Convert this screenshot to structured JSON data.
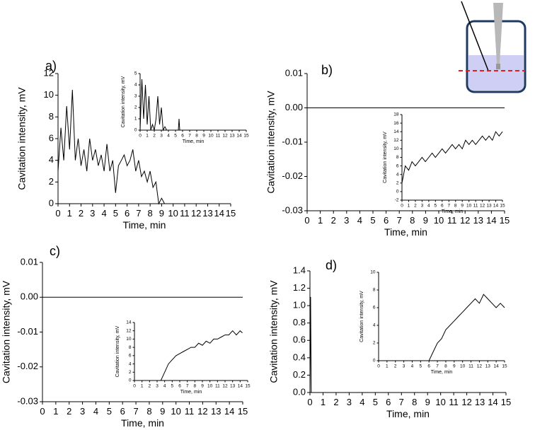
{
  "chart_data": [
    {
      "type": "line",
      "panel_label": "a)",
      "xlabel": "Time, min",
      "ylabel": "Cavitation intensity, mV",
      "color": "#000000",
      "x": [
        0,
        0.25,
        0.5,
        0.75,
        1,
        1.25,
        1.5,
        1.75,
        2,
        2.25,
        2.5,
        2.75,
        3,
        3.25,
        3.5,
        3.75,
        4,
        4.25,
        4.5,
        4.75,
        5,
        5.25,
        5.5,
        5.75,
        6,
        6.25,
        6.5,
        6.75,
        7,
        7.25,
        7.5,
        7.75,
        8,
        8.25,
        8.5,
        8.75,
        9,
        9.25,
        9.5,
        9.75,
        10,
        15
      ],
      "values": [
        3,
        7,
        4,
        9,
        5,
        10.5,
        4,
        6,
        3.5,
        5,
        3,
        6,
        4,
        5,
        3.5,
        4.5,
        3,
        5.5,
        3,
        4,
        1,
        3.5,
        4,
        4.5,
        3.5,
        4,
        5,
        3,
        4,
        2.5,
        3,
        2,
        3,
        1.5,
        2,
        0,
        0.5,
        0,
        0,
        0,
        0,
        0
      ],
      "xlim": [
        0,
        15
      ],
      "ylim": [
        0,
        12
      ],
      "xticks": [
        0,
        1,
        2,
        3,
        4,
        5,
        6,
        7,
        8,
        9,
        10,
        11,
        12,
        13,
        14,
        15
      ],
      "yticks": [
        0,
        2,
        4,
        6,
        8,
        10,
        12
      ]
    },
    {
      "type": "line",
      "xlabel": "Time, min",
      "ylabel": "Cavitation intensity, mV",
      "color": "#000000",
      "x": [
        0,
        0.25,
        0.5,
        0.75,
        1,
        1.25,
        1.5,
        1.75,
        2,
        2.25,
        2.5,
        2.75,
        3,
        3.25,
        3.5,
        3.75,
        4,
        5.4,
        5.5,
        5.6,
        15
      ],
      "values": [
        0,
        4.5,
        1,
        4,
        0.5,
        3,
        0,
        0.5,
        0,
        1,
        3,
        0.5,
        2,
        0,
        0.3,
        0,
        0,
        0,
        1,
        0,
        0
      ],
      "xlim": [
        0,
        15
      ],
      "ylim": [
        0,
        5
      ],
      "xticks": [
        0,
        1,
        2,
        3,
        4,
        5,
        6,
        7,
        8,
        9,
        10,
        11,
        12,
        13,
        14,
        15
      ],
      "yticks": [
        0,
        1,
        2,
        3,
        4,
        5
      ]
    },
    {
      "type": "line",
      "panel_label": "b)",
      "xlabel": "Time, min",
      "ylabel": "Cavitation intensity, mV",
      "color": "#000000",
      "x": [
        0,
        15
      ],
      "values": [
        0,
        0
      ],
      "xlim": [
        0,
        15
      ],
      "ylim": [
        -0.03,
        0.01
      ],
      "xticks": [
        0,
        1,
        2,
        3,
        4,
        5,
        6,
        7,
        8,
        9,
        10,
        11,
        12,
        13,
        14,
        15
      ],
      "yticks": [
        -0.03,
        -0.02,
        -0.01,
        {
          "value": 0,
          "label": "0.00"
        },
        0.01
      ]
    },
    {
      "type": "line",
      "xlabel": "Time, min",
      "ylabel": "Cavitation intensity, mV",
      "color": "#000000",
      "x": [
        0,
        0.5,
        1,
        1.5,
        2,
        2.5,
        3,
        3.5,
        4,
        4.5,
        5,
        5.5,
        6,
        6.5,
        7,
        7.5,
        8,
        8.5,
        9,
        9.5,
        10,
        10.5,
        11,
        11.5,
        12,
        12.5,
        13,
        13.5,
        14,
        14.5,
        15
      ],
      "values": [
        2,
        6,
        5,
        7,
        6,
        7,
        8,
        7,
        8,
        9,
        8,
        9,
        10,
        9,
        10,
        11,
        10,
        11,
        10,
        12,
        11,
        12,
        11,
        12,
        13,
        12,
        13,
        12,
        14,
        13,
        14
      ],
      "xlim": [
        0,
        15
      ],
      "ylim": [
        -2,
        18
      ],
      "xticks": [
        0,
        1,
        2,
        3,
        4,
        5,
        6,
        7,
        8,
        9,
        10,
        11,
        12,
        13,
        14,
        15
      ],
      "yticks": [
        -2,
        0,
        2,
        4,
        6,
        8,
        10,
        12,
        14,
        16,
        18
      ]
    },
    {
      "type": "line",
      "panel_label": "c)",
      "xlabel": "Time, min",
      "ylabel": "Cavitation intensity, mV",
      "color": "#000000",
      "x": [
        0,
        15
      ],
      "values": [
        0,
        0
      ],
      "xlim": [
        0,
        15
      ],
      "ylim": [
        -0.03,
        0.01
      ],
      "xticks": [
        0,
        1,
        2,
        3,
        4,
        5,
        6,
        7,
        8,
        9,
        10,
        11,
        12,
        13,
        14,
        15
      ],
      "yticks": [
        -0.03,
        -0.02,
        -0.01,
        {
          "value": 0,
          "label": "0.00"
        },
        0.01
      ]
    },
    {
      "type": "line",
      "xlabel": "Time, min",
      "ylabel": "Cavitation intensity, mV",
      "color": "#000000",
      "x": [
        0,
        0.5,
        1,
        1.5,
        2,
        2.5,
        3,
        3.5,
        4,
        4.5,
        5,
        5.5,
        6,
        6.5,
        7,
        7.5,
        8,
        8.5,
        9,
        9.5,
        10,
        10.5,
        11,
        11.5,
        12,
        12.5,
        13,
        13.5,
        14,
        14.3
      ],
      "values": [
        0,
        0,
        0,
        0,
        0,
        0,
        0,
        0,
        2,
        4,
        5,
        6,
        6.5,
        7,
        7.5,
        8,
        8,
        9,
        8.5,
        9.5,
        9,
        10,
        10,
        10.5,
        11,
        11,
        12,
        11,
        12,
        11.5
      ],
      "xlim": [
        0,
        15
      ],
      "ylim": [
        0,
        14
      ],
      "xticks": [
        0,
        1,
        2,
        3,
        4,
        5,
        6,
        7,
        8,
        9,
        10,
        11,
        12,
        13,
        14,
        15
      ],
      "yticks": [
        0,
        2,
        4,
        6,
        8,
        10,
        12,
        14
      ]
    },
    {
      "type": "line",
      "panel_label": "d)",
      "xlabel": "Time, min",
      "ylabel": "Cavitation intensity, mV",
      "color": "#000000",
      "x": [
        0,
        0.05,
        0.1,
        15
      ],
      "values": [
        0,
        1.1,
        0,
        0
      ],
      "xlim": [
        0,
        15
      ],
      "ylim": [
        0,
        1.4
      ],
      "xticks": [
        0,
        1,
        2,
        3,
        4,
        5,
        6,
        7,
        8,
        9,
        10,
        11,
        12,
        13,
        14,
        15
      ],
      "yticks": [
        {
          "value": 0,
          "label": "0.0"
        },
        0.2,
        0.4,
        0.6,
        0.8,
        {
          "value": 1,
          "label": "1.0"
        },
        1.2,
        1.4
      ]
    },
    {
      "type": "line",
      "xlabel": "Time, min",
      "ylabel": "Cavitation intensity, mV",
      "color": "#000000",
      "x": [
        0,
        0.5,
        1,
        1.5,
        2,
        2.5,
        3,
        3.5,
        4,
        4.5,
        5,
        5.5,
        6,
        6.5,
        7,
        7.5,
        8,
        8.5,
        9,
        9.5,
        10,
        10.5,
        11,
        11.5,
        12,
        12.5,
        13,
        13.5,
        14,
        14.5,
        15
      ],
      "values": [
        0,
        0,
        0,
        0,
        0,
        0,
        0,
        0,
        0,
        0,
        0,
        0,
        0,
        1,
        2,
        2.5,
        3.5,
        4,
        4.5,
        5,
        5.5,
        6,
        6.5,
        7,
        6.5,
        7.5,
        7,
        6.5,
        6,
        6.5,
        6
      ],
      "xlim": [
        0,
        15
      ],
      "ylim": [
        0,
        10
      ],
      "xticks": [
        0,
        1,
        2,
        3,
        4,
        5,
        6,
        7,
        8,
        9,
        10,
        11,
        12,
        13,
        14,
        15
      ],
      "yticks": [
        0,
        2,
        4,
        6,
        8,
        10
      ]
    }
  ]
}
